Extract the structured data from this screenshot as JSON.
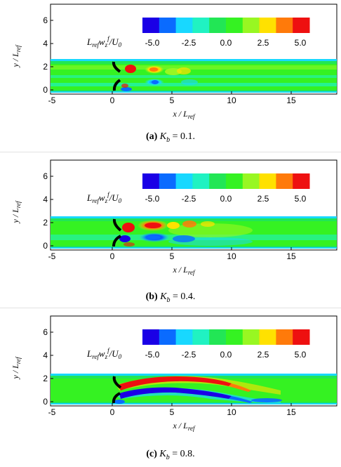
{
  "chart_data": [
    {
      "type": "heatmap",
      "panel_tag": "(a)",
      "caption_param": "K",
      "caption_sub": "b",
      "caption_value": "= 0.1.",
      "xlabel": "x / L_ref",
      "ylabel": "y / L_ref",
      "x_ticks": [
        "-5",
        "0",
        "5",
        "10",
        "15"
      ],
      "y_ticks": [
        "0",
        "2",
        "4",
        "6"
      ],
      "xlim": [
        -5,
        19
      ],
      "ylim": [
        -0.3,
        7.2
      ],
      "channel_y": [
        0,
        2.65
      ],
      "colorbar_title": "L_ref w_z^f / U_0",
      "colorbar_ticks": [
        "-5.0",
        "-2.5",
        "0.0",
        "2.5",
        "5.0"
      ],
      "colorbar_range": [
        -6,
        6
      ],
      "features": [
        {
          "kind": "positive",
          "x": 1.3,
          "y": 2.2,
          "value": 4.5
        },
        {
          "kind": "positive",
          "x": 3.5,
          "y": 1.8,
          "value": 3.0
        },
        {
          "kind": "negative",
          "x": 3.6,
          "y": 0.75,
          "value": -3.0
        },
        {
          "kind": "negative",
          "x": 1.2,
          "y": 0.45,
          "value": -5.0
        }
      ]
    },
    {
      "type": "heatmap",
      "panel_tag": "(b)",
      "caption_param": "K",
      "caption_sub": "b",
      "caption_value": "= 0.4.",
      "xlabel": "x / L_ref",
      "ylabel": "y / L_ref",
      "x_ticks": [
        "-5",
        "0",
        "5",
        "10",
        "15"
      ],
      "y_ticks": [
        "0",
        "2",
        "4",
        "6"
      ],
      "xlim": [
        -5,
        19
      ],
      "ylim": [
        -0.3,
        7.2
      ],
      "channel_y": [
        0,
        2.65
      ],
      "colorbar_title": "L_ref w_z^f / U_0",
      "colorbar_ticks": [
        "-5.0",
        "-2.5",
        "0.0",
        "2.5",
        "5.0"
      ],
      "colorbar_range": [
        -6,
        6
      ],
      "features": [
        {
          "kind": "positive",
          "x": 1.2,
          "y": 1.95,
          "value": 6.0
        },
        {
          "kind": "positive",
          "x": 3.4,
          "y": 2.0,
          "value": 5.0
        },
        {
          "kind": "negative",
          "x": 3.6,
          "y": 1.0,
          "value": -5.0
        },
        {
          "kind": "negative",
          "x": 1.1,
          "y": 0.7,
          "value": -5.5
        }
      ]
    },
    {
      "type": "heatmap",
      "panel_tag": "(c)",
      "caption_param": "K",
      "caption_sub": "b",
      "caption_value": "= 0.8.",
      "xlabel": "x / L_ref",
      "ylabel": "y / L_ref",
      "x_ticks": [
        "-5",
        "0",
        "5",
        "10",
        "15"
      ],
      "y_ticks": [
        "0",
        "2",
        "4",
        "6"
      ],
      "xlim": [
        -5,
        19
      ],
      "ylim": [
        -0.3,
        7.2
      ],
      "channel_y": [
        0,
        2.65
      ],
      "colorbar_title": "L_ref w_z^f / U_0",
      "colorbar_ticks": [
        "-5.0",
        "-2.5",
        "0.0",
        "2.5",
        "5.0"
      ],
      "colorbar_range": [
        -6,
        6
      ],
      "features": [
        {
          "kind": "positive",
          "x": 5.0,
          "y": 2.1,
          "value": 6.0
        },
        {
          "kind": "negative",
          "x": 5.0,
          "y": 1.2,
          "value": -6.0
        },
        {
          "kind": "negative",
          "x": 13.0,
          "y": 0.15,
          "value": -3.0
        }
      ]
    }
  ],
  "colorbar_colors": [
    "#1a00e6",
    "#0a6bff",
    "#18d8ff",
    "#20f2c2",
    "#22e655",
    "#35f222",
    "#98f722",
    "#ffe100",
    "#ff7a0a",
    "#ee1010"
  ]
}
